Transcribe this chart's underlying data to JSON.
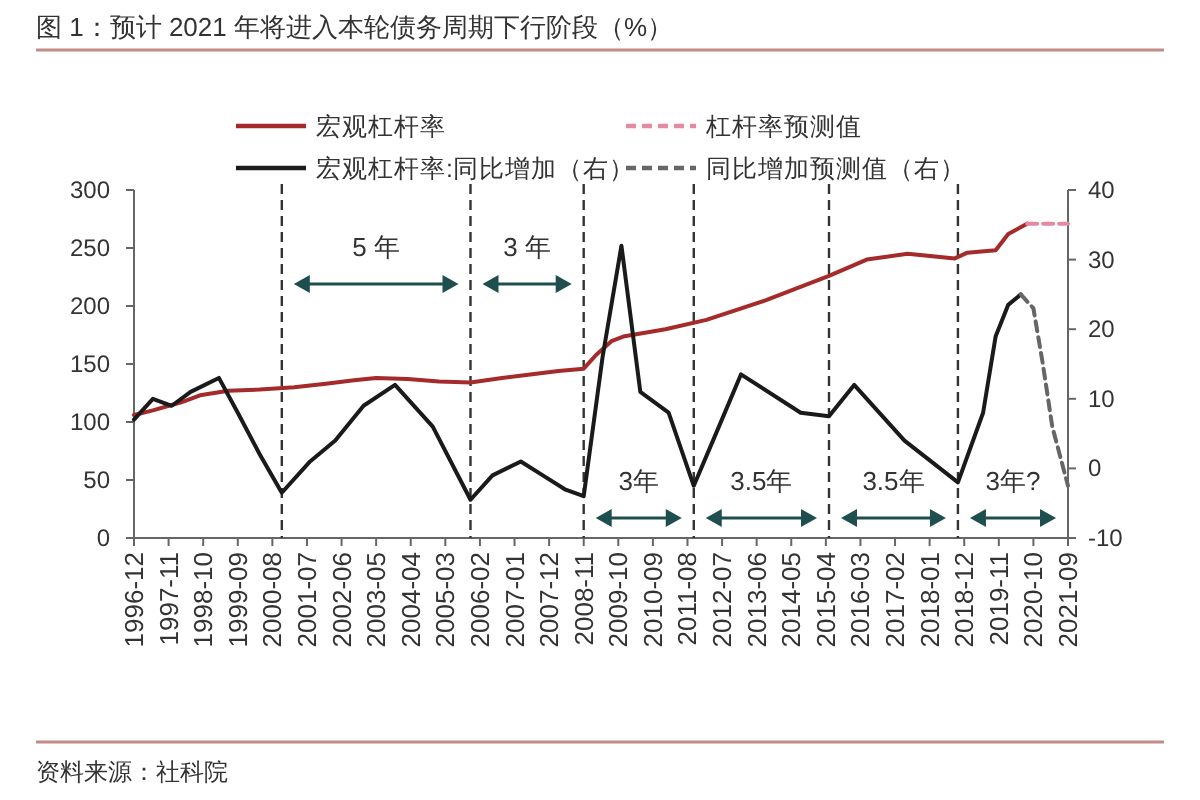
{
  "chart_data": {
    "type": "line",
    "title": "图 1：预计 2021 年将进入本轮债务周期下行阶段（%）",
    "xlim": [
      "1996-12",
      "2021-09"
    ],
    "xticks": [
      "1996-12",
      "1997-11",
      "1998-10",
      "1999-09",
      "2000-08",
      "2001-07",
      "2002-06",
      "2003-05",
      "2004-04",
      "2005-03",
      "2006-02",
      "2007-01",
      "2007-12",
      "2008-11",
      "2009-10",
      "2010-09",
      "2011-08",
      "2012-07",
      "2013-06",
      "2014-05",
      "2015-04",
      "2016-03",
      "2017-02",
      "2018-01",
      "2018-12",
      "2019-11",
      "2020-10",
      "2021-09"
    ],
    "ylim": [
      0,
      300
    ],
    "yticks": [
      0,
      50,
      100,
      150,
      200,
      250,
      300
    ],
    "y2lim": [
      -10,
      40
    ],
    "y2ticks": [
      -10,
      0,
      10,
      20,
      30,
      40
    ],
    "legend": "top",
    "series": [
      {
        "name": "宏观杠杆率",
        "color": "#a52a2a",
        "line_style": "solid",
        "x": [
          "1996-12",
          "1997-06",
          "1998-03",
          "1998-09",
          "1999-06",
          "2000-04",
          "2001-03",
          "2002-01",
          "2002-10",
          "2003-05",
          "2004-03",
          "2005-01",
          "2005-11",
          "2006-09",
          "2007-06",
          "2008-03",
          "2008-11",
          "2009-03",
          "2009-08",
          "2009-12",
          "2011-01",
          "2012-02",
          "2013-09",
          "2015-05",
          "2016-05",
          "2017-06",
          "2018-09",
          "2019-01",
          "2019-10",
          "2020-02",
          "2020-08"
        ],
        "values": [
          106,
          110,
          117,
          123,
          127,
          128,
          130,
          133,
          136,
          138,
          137,
          135,
          134,
          138,
          141,
          144,
          146,
          158,
          170,
          174,
          180,
          188,
          205,
          226,
          240,
          245,
          241,
          246,
          248,
          262,
          271
        ]
      },
      {
        "name": "杠杆率预测值",
        "color": "#e48aa0",
        "line_style": "dashed",
        "x": [
          "2020-08",
          "2021-09"
        ],
        "values": [
          271,
          271
        ]
      },
      {
        "name": "宏观杠杆率:同比增加（右）",
        "color": "#1a1a1a",
        "line_style": "solid",
        "axis": "y2",
        "x": [
          "1996-12",
          "1997-06",
          "1997-12",
          "1998-06",
          "1999-03",
          "1999-09",
          "2000-04",
          "2000-11",
          "2001-08",
          "2002-04",
          "2003-01",
          "2003-11",
          "2004-11",
          "2005-11",
          "2006-06",
          "2007-03",
          "2007-10",
          "2008-05",
          "2008-11",
          "2009-05",
          "2009-11",
          "2010-05",
          "2011-02",
          "2011-10",
          "2012-06",
          "2013-01",
          "2014-08",
          "2015-05",
          "2016-01",
          "2017-05",
          "2018-10",
          "2019-06",
          "2019-10",
          "2020-02",
          "2020-06"
        ],
        "values": [
          7,
          10,
          9,
          11,
          13,
          8,
          2,
          -3.5,
          1,
          4,
          9,
          12,
          6,
          -4.5,
          -1,
          1,
          -1,
          -3,
          -4,
          16,
          32,
          11,
          8,
          -2.5,
          6,
          13.5,
          8,
          7.5,
          12,
          4,
          -2,
          8,
          19,
          23.5,
          25
        ]
      },
      {
        "name": "同比增加预测值（右）",
        "color": "#666666",
        "line_style": "dashed",
        "axis": "y2",
        "x": [
          "2020-06",
          "2020-10",
          "2021-01",
          "2021-04",
          "2021-09"
        ],
        "values": [
          25,
          23,
          15,
          6,
          -2.5
        ]
      }
    ],
    "ref_lines": [
      {
        "axis": "x",
        "value": "2000-11",
        "color": "#333333",
        "line_style": "dashed"
      },
      {
        "axis": "x",
        "value": "2005-11",
        "color": "#333333",
        "line_style": "dashed"
      },
      {
        "axis": "x",
        "value": "2008-11",
        "color": "#333333",
        "line_style": "dashed"
      },
      {
        "axis": "x",
        "value": "2011-10",
        "color": "#333333",
        "line_style": "dashed"
      },
      {
        "axis": "x",
        "value": "2015-05",
        "color": "#333333",
        "line_style": "dashed"
      },
      {
        "axis": "x",
        "value": "2018-10",
        "color": "#333333",
        "line_style": "dashed"
      }
    ],
    "annotations": [
      "5 年",
      "3 年",
      "3年",
      "3.5年",
      "3.5年",
      "3年?",
      "资料来源：社科院"
    ]
  }
}
